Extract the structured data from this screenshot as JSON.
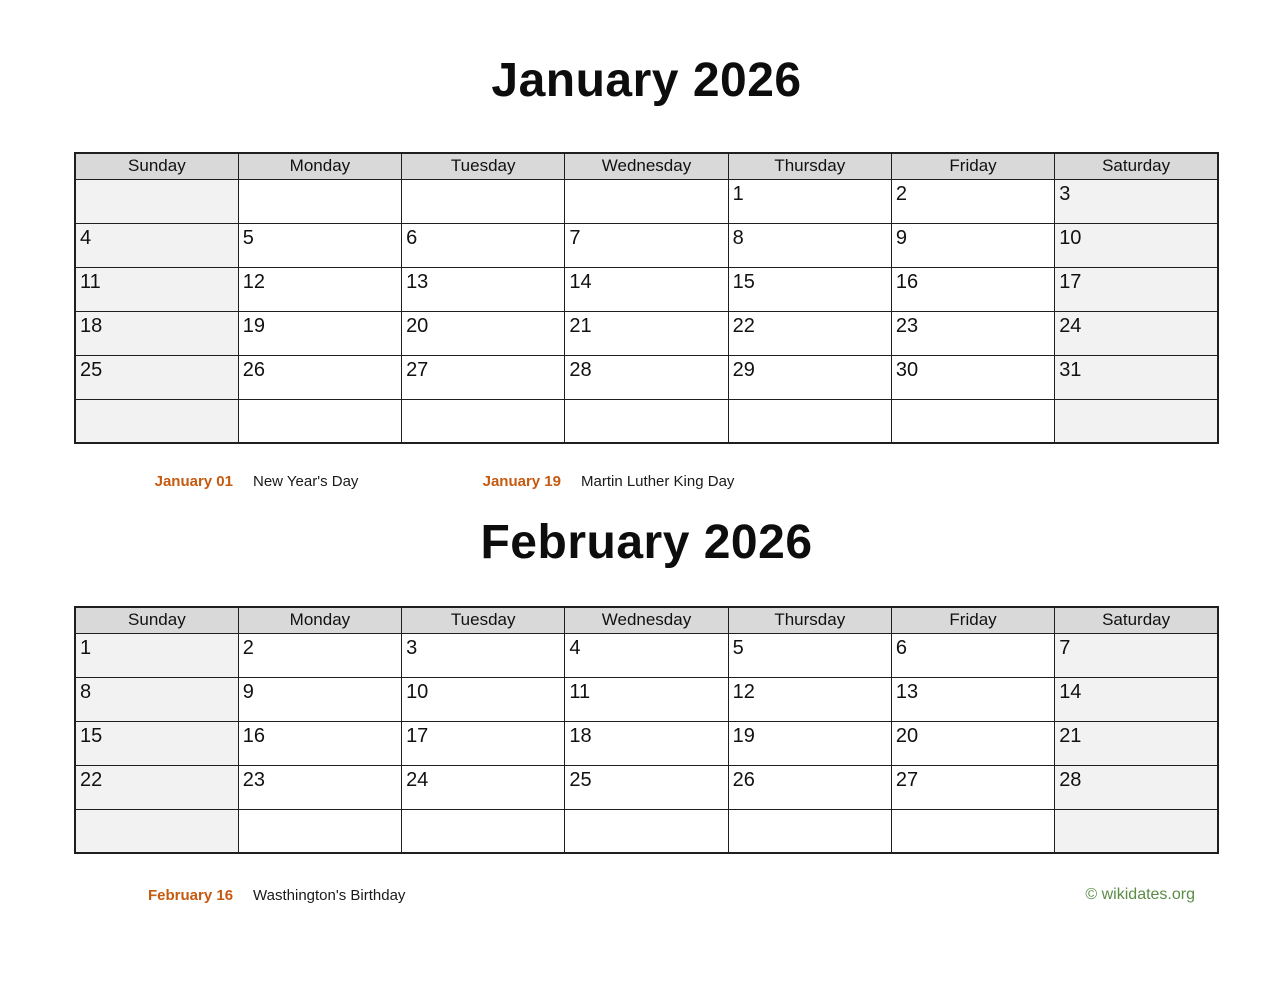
{
  "months": [
    {
      "title": "January 2026",
      "weekdays": [
        "Sunday",
        "Monday",
        "Tuesday",
        "Wednesday",
        "Thursday",
        "Friday",
        "Saturday"
      ],
      "weeks": [
        [
          "",
          "",
          "",
          "",
          "1",
          "2",
          "3"
        ],
        [
          "4",
          "5",
          "6",
          "7",
          "8",
          "9",
          "10"
        ],
        [
          "11",
          "12",
          "13",
          "14",
          "15",
          "16",
          "17"
        ],
        [
          "18",
          "19",
          "20",
          "21",
          "22",
          "23",
          "24"
        ],
        [
          "25",
          "26",
          "27",
          "28",
          "29",
          "30",
          "31"
        ],
        [
          "",
          "",
          "",
          "",
          "",
          "",
          ""
        ]
      ],
      "holidays": [
        {
          "date": "January 01",
          "name": "New Year's Day"
        },
        {
          "date": "January 19",
          "name": "Martin Luther King Day"
        }
      ]
    },
    {
      "title": "February 2026",
      "weekdays": [
        "Sunday",
        "Monday",
        "Tuesday",
        "Wednesday",
        "Thursday",
        "Friday",
        "Saturday"
      ],
      "weeks": [
        [
          "1",
          "2",
          "3",
          "4",
          "5",
          "6",
          "7"
        ],
        [
          "8",
          "9",
          "10",
          "11",
          "12",
          "13",
          "14"
        ],
        [
          "15",
          "16",
          "17",
          "18",
          "19",
          "20",
          "21"
        ],
        [
          "22",
          "23",
          "24",
          "25",
          "26",
          "27",
          "28"
        ],
        [
          "",
          "",
          "",
          "",
          "",
          "",
          ""
        ]
      ],
      "holidays": [
        {
          "date": "February 16",
          "name": "Wasthington's Birthday"
        }
      ]
    }
  ],
  "footer": {
    "copyright": "© wikidates.org"
  },
  "colors": {
    "header_bg": "#d9d9d9",
    "weekend_bg": "#f2f2f2",
    "border_color": "#1f1f1f",
    "holiday_date_color": "#c55a11",
    "footer_green": "#5b8c46"
  }
}
